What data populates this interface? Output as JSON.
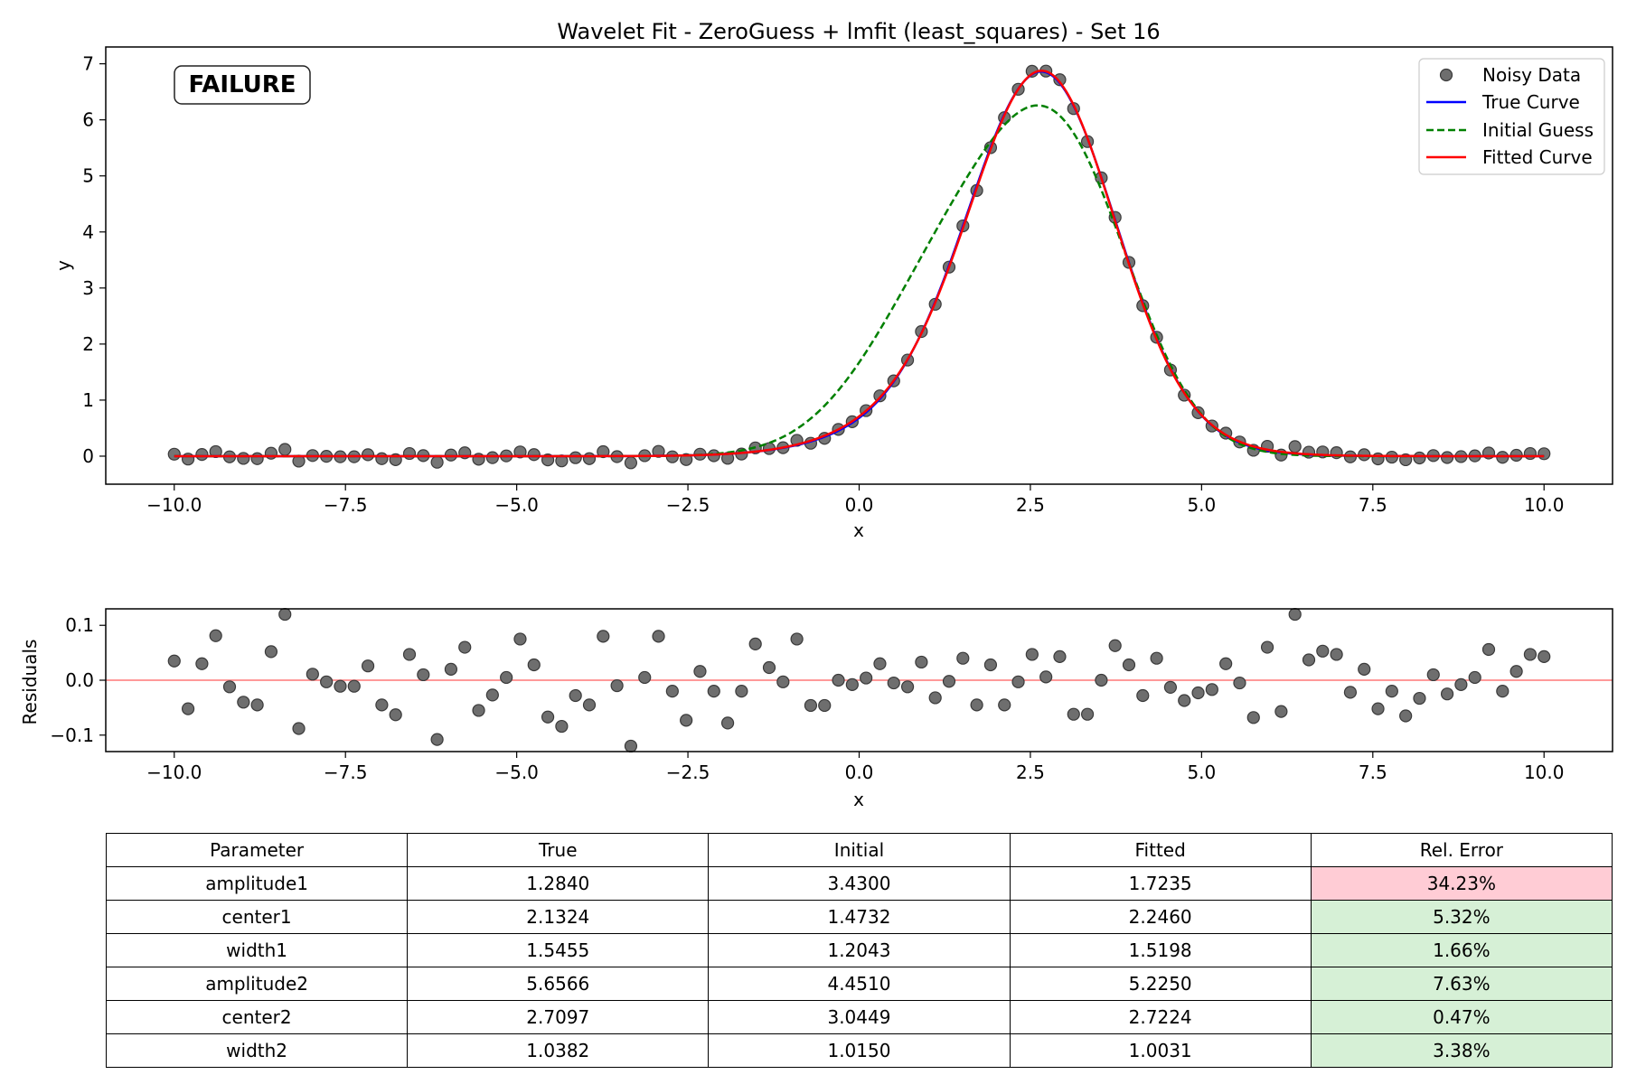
{
  "colors": {
    "noisy": "#6e6e6e",
    "true_curve": "#0000ff",
    "initial": "#008000",
    "fitted": "#ff0000",
    "failure": "#ff0000",
    "zero_line": "#ff9999",
    "bad_cell": "#ffccd5",
    "good_cell": "#d6f0d6"
  },
  "badge": {
    "text": "FAILURE"
  },
  "table": {
    "headers": [
      "Parameter",
      "True",
      "Initial",
      "Fitted",
      "Rel. Error"
    ],
    "rows": [
      {
        "cells": [
          "amplitude1",
          "1.2840",
          "3.4300",
          "1.7235",
          "34.23%"
        ],
        "status": "bad"
      },
      {
        "cells": [
          "center1",
          "2.1324",
          "1.4732",
          "2.2460",
          "5.32%"
        ],
        "status": "good"
      },
      {
        "cells": [
          "width1",
          "1.5455",
          "1.2043",
          "1.5198",
          "1.66%"
        ],
        "status": "good"
      },
      {
        "cells": [
          "amplitude2",
          "5.6566",
          "4.4510",
          "5.2250",
          "7.63%"
        ],
        "status": "good"
      },
      {
        "cells": [
          "center2",
          "2.7097",
          "3.0449",
          "2.7224",
          "0.47%"
        ],
        "status": "good"
      },
      {
        "cells": [
          "width2",
          "1.0382",
          "1.0150",
          "1.0031",
          "3.38%"
        ],
        "status": "good"
      }
    ]
  },
  "chart_data": [
    {
      "type": "line",
      "title": "Wavelet Fit - ZeroGuess + lmfit (least_squares) - Set 16",
      "xlabel": "x",
      "ylabel": "y",
      "xlim": [
        -11,
        11
      ],
      "ylim": [
        -0.5,
        7.3
      ],
      "xticks": [
        -10,
        -7.5,
        -5,
        -2.5,
        0,
        2.5,
        5,
        7.5,
        10
      ],
      "xtick_labels": [
        "−10.0",
        "−7.5",
        "−5.0",
        "−2.5",
        "0.0",
        "2.5",
        "5.0",
        "7.5",
        "10.0"
      ],
      "yticks": [
        0,
        1,
        2,
        3,
        4,
        5,
        6,
        7
      ],
      "ytick_labels": [
        "0",
        "1",
        "2",
        "3",
        "4",
        "5",
        "6",
        "7"
      ],
      "legend_position": "top-right",
      "series": [
        {
          "name": "Noisy Data",
          "kind": "points",
          "x_range": [
            -10,
            10
          ],
          "n_points": 100,
          "model": {
            "amplitude1": 1.7235,
            "center1": 2.246,
            "width1": 1.5198,
            "amplitude2": 5.225,
            "center2": 2.7224,
            "width2": 1.0031
          }
        },
        {
          "name": "True Curve",
          "kind": "line",
          "model": {
            "amplitude1": 1.284,
            "center1": 2.1324,
            "width1": 1.5455,
            "amplitude2": 5.6566,
            "center2": 2.7097,
            "width2": 1.0382
          }
        },
        {
          "name": "Initial Guess",
          "kind": "dashed",
          "model": {
            "amplitude1": 3.43,
            "center1": 1.4732,
            "width1": 1.2043,
            "amplitude2": 4.451,
            "center2": 3.0449,
            "width2": 1.015
          }
        },
        {
          "name": "Fitted Curve",
          "kind": "line",
          "model": {
            "amplitude1": 1.7235,
            "center1": 2.246,
            "width1": 1.5198,
            "amplitude2": 5.225,
            "center2": 2.7224,
            "width2": 1.0031
          }
        }
      ]
    },
    {
      "type": "scatter",
      "xlabel": "x",
      "ylabel": "Residuals",
      "xlim": [
        -11,
        11
      ],
      "ylim": [
        -0.13,
        0.13
      ],
      "xticks": [
        -10,
        -7.5,
        -5,
        -2.5,
        0,
        2.5,
        5,
        7.5,
        10
      ],
      "xtick_labels": [
        "−10.0",
        "−7.5",
        "−5.0",
        "−2.5",
        "0.0",
        "2.5",
        "5.0",
        "7.5",
        "10.0"
      ],
      "yticks": [
        -0.1,
        0,
        0.1
      ],
      "ytick_labels": [
        "−0.1",
        "0.0",
        "0.1"
      ],
      "zero_line": 0,
      "x_range": [
        -10,
        10
      ],
      "residuals": [
        0.035,
        -0.052,
        0.03,
        0.081,
        -0.012,
        -0.04,
        -0.045,
        0.052,
        0.12,
        -0.088,
        0.011,
        -0.003,
        -0.011,
        -0.011,
        0.026,
        -0.045,
        -0.063,
        0.047,
        0.01,
        -0.108,
        0.02,
        0.06,
        -0.055,
        -0.027,
        0.005,
        0.075,
        0.028,
        -0.067,
        -0.084,
        -0.028,
        -0.045,
        0.08,
        -0.01,
        -0.12,
        0.005,
        0.08,
        -0.02,
        -0.073,
        0.016,
        -0.02,
        -0.078,
        -0.02,
        0.066,
        0.023,
        -0.003,
        0.075,
        -0.046,
        -0.046,
        0.0,
        -0.008,
        0.004,
        0.03,
        -0.005,
        -0.012,
        0.033,
        -0.032,
        -0.002,
        0.04,
        -0.045,
        0.028,
        -0.045,
        -0.003,
        0.047,
        0.006,
        0.043,
        -0.062,
        -0.062,
        0.0,
        0.063,
        0.028,
        -0.028,
        0.04,
        -0.013,
        -0.037,
        -0.023,
        -0.017,
        0.03,
        -0.005,
        -0.068,
        0.06,
        -0.057,
        0.12,
        0.037,
        0.053,
        0.047,
        -0.022,
        0.02,
        -0.052,
        -0.02,
        -0.065,
        -0.033,
        0.01,
        -0.025,
        -0.008,
        0.005,
        0.056,
        -0.02,
        0.016,
        0.047,
        0.043
      ]
    }
  ]
}
